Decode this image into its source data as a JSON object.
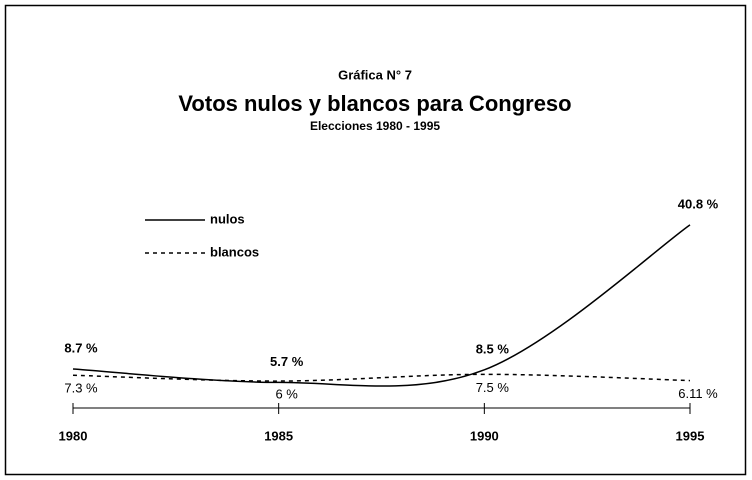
{
  "chart_data": {
    "type": "line",
    "title": "Gráfica N° 7",
    "subtitle": "Votos nulos y blancos para Congreso",
    "annotation": "Elecciones 1980 - 1995",
    "x": [
      1980,
      1985,
      1990,
      1995
    ],
    "xlim": [
      1980,
      1995
    ],
    "xticks": [
      1980,
      1985,
      1990,
      1995
    ],
    "ylim": [
      0,
      45
    ],
    "series": [
      {
        "name": "nulos",
        "color": "#000000",
        "dash": "solid",
        "values": [
          8.7,
          5.7,
          8.5,
          40.8
        ],
        "value_labels": [
          "8.7 %",
          "5.7 %",
          "8.5 %",
          "40.8 %"
        ]
      },
      {
        "name": "blancos",
        "color": "#000000",
        "dash": "dashed",
        "values": [
          7.3,
          6,
          7.5,
          6.11
        ],
        "value_labels": [
          "7.3 %",
          "6 %",
          "7.5 %",
          "6.11 %"
        ]
      }
    ]
  }
}
